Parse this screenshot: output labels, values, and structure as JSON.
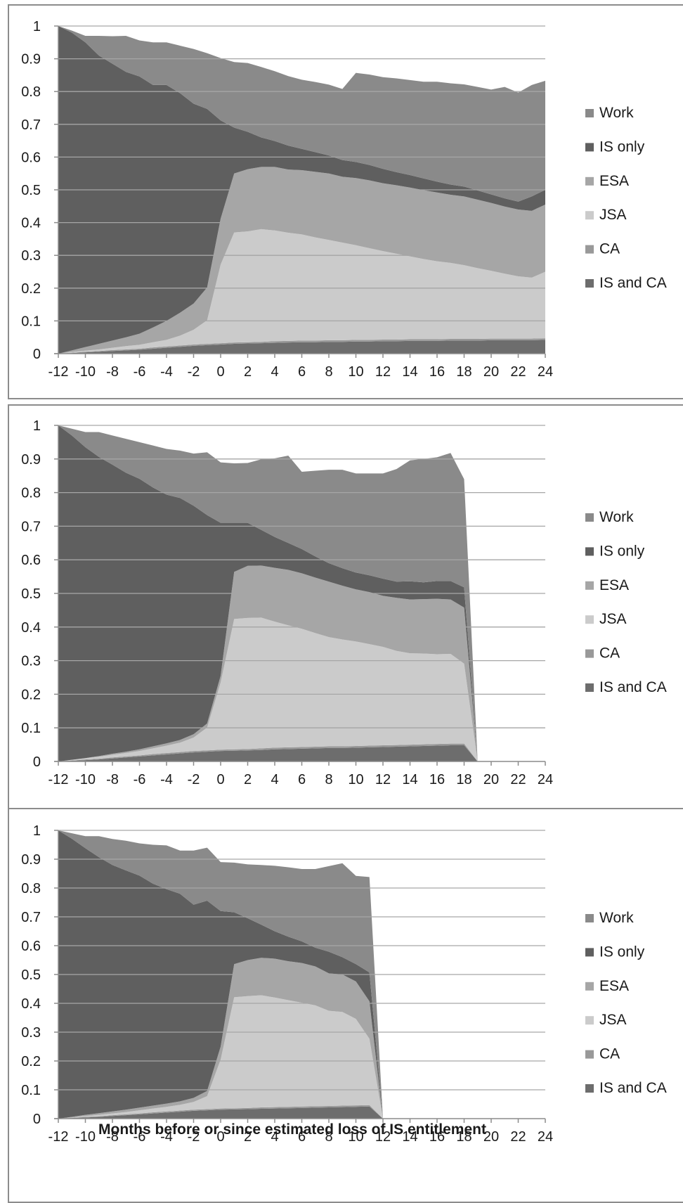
{
  "chart_data": [
    {
      "type": "area",
      "stacked": true,
      "title": "",
      "xlabel": "",
      "ylabel": "",
      "xlim": [
        -12,
        24
      ],
      "ylim": [
        0,
        1
      ],
      "x_ticks": [
        "-12",
        "-10",
        "-8",
        "-6",
        "-4",
        "-2",
        "0",
        "2",
        "4",
        "6",
        "8",
        "10",
        "12",
        "14",
        "16",
        "18",
        "20",
        "22",
        "24"
      ],
      "y_ticks": [
        "0",
        "0.1",
        "0.2",
        "0.3",
        "0.4",
        "0.5",
        "0.6",
        "0.7",
        "0.8",
        "0.9",
        "1"
      ],
      "grid": true,
      "legend": "right",
      "x": [
        -12,
        -11,
        -10,
        -9,
        -8,
        -7,
        -6,
        -5,
        -4,
        -3,
        -2,
        -1,
        0,
        1,
        2,
        3,
        4,
        5,
        6,
        7,
        8,
        9,
        10,
        11,
        12,
        13,
        14,
        15,
        16,
        17,
        18,
        19,
        20,
        21,
        22,
        23,
        24
      ],
      "series": [
        {
          "name": "IS and CA",
          "color": "#6d6d6d",
          "values": [
            0,
            0.002,
            0.004,
            0.006,
            0.008,
            0.01,
            0.012,
            0.015,
            0.018,
            0.021,
            0.024,
            0.026,
            0.028,
            0.03,
            0.031,
            0.032,
            0.033,
            0.034,
            0.035,
            0.035,
            0.036,
            0.036,
            0.037,
            0.037,
            0.038,
            0.038,
            0.039,
            0.039,
            0.039,
            0.04,
            0.04,
            0.04,
            0.041,
            0.041,
            0.041,
            0.041,
            0.042
          ]
        },
        {
          "name": "CA",
          "color": "#999999",
          "values": [
            0,
            0.001,
            0.002,
            0.002,
            0.003,
            0.003,
            0.003,
            0.004,
            0.004,
            0.004,
            0.004,
            0.004,
            0.004,
            0.004,
            0.004,
            0.004,
            0.005,
            0.005,
            0.005,
            0.005,
            0.005,
            0.005,
            0.005,
            0.005,
            0.005,
            0.005,
            0.005,
            0.005,
            0.005,
            0.005,
            0.005,
            0.005,
            0.005,
            0.005,
            0.005,
            0.005,
            0.005
          ]
        },
        {
          "name": "JSA",
          "color": "#cbcbcb",
          "values": [
            0,
            0.002,
            0.003,
            0.005,
            0.007,
            0.01,
            0.012,
            0.016,
            0.02,
            0.03,
            0.045,
            0.072,
            0.24,
            0.336,
            0.338,
            0.344,
            0.338,
            0.33,
            0.324,
            0.315,
            0.306,
            0.298,
            0.289,
            0.28,
            0.27,
            0.262,
            0.253,
            0.245,
            0.238,
            0.232,
            0.225,
            0.216,
            0.207,
            0.198,
            0.19,
            0.186,
            0.203
          ]
        },
        {
          "name": "ESA",
          "color": "#a6a6a6",
          "values": [
            0,
            0.005,
            0.011,
            0.017,
            0.022,
            0.027,
            0.034,
            0.045,
            0.058,
            0.07,
            0.08,
            0.1,
            0.14,
            0.18,
            0.19,
            0.19,
            0.194,
            0.193,
            0.196,
            0.2,
            0.203,
            0.201,
            0.205,
            0.207,
            0.207,
            0.209,
            0.21,
            0.21,
            0.21,
            0.208,
            0.21,
            0.209,
            0.207,
            0.205,
            0.204,
            0.204,
            0.205
          ]
        },
        {
          "name": "IS only",
          "color": "#5f5f5f",
          "values": [
            1,
            0.97,
            0.93,
            0.88,
            0.845,
            0.81,
            0.785,
            0.74,
            0.72,
            0.67,
            0.61,
            0.545,
            0.3,
            0.14,
            0.114,
            0.09,
            0.079,
            0.073,
            0.065,
            0.06,
            0.055,
            0.051,
            0.049,
            0.047,
            0.044,
            0.04,
            0.038,
            0.036,
            0.033,
            0.031,
            0.03,
            0.028,
            0.026,
            0.025,
            0.024,
            0.044,
            0.045
          ]
        },
        {
          "name": "Work",
          "color": "#8a8a8a",
          "values": [
            0,
            0.006,
            0.02,
            0.06,
            0.084,
            0.11,
            0.11,
            0.13,
            0.13,
            0.145,
            0.167,
            0.17,
            0.19,
            0.2,
            0.21,
            0.215,
            0.213,
            0.212,
            0.211,
            0.214,
            0.216,
            0.217,
            0.272,
            0.276,
            0.28,
            0.286,
            0.29,
            0.295,
            0.305,
            0.309,
            0.312,
            0.316,
            0.32,
            0.34,
            0.333,
            0.34,
            0.333
          ]
        }
      ]
    },
    {
      "type": "area",
      "stacked": true,
      "title": "",
      "xlabel": "",
      "ylabel": "",
      "xlim": [
        -12,
        24
      ],
      "ylim": [
        0,
        1
      ],
      "x_ticks": [
        "-12",
        "-10",
        "-8",
        "-6",
        "-4",
        "-2",
        "0",
        "2",
        "4",
        "6",
        "8",
        "10",
        "12",
        "14",
        "16",
        "18",
        "20",
        "22",
        "24"
      ],
      "y_ticks": [
        "0",
        "0.1",
        "0.2",
        "0.3",
        "0.4",
        "0.5",
        "0.6",
        "0.7",
        "0.8",
        "0.9",
        "1"
      ],
      "grid": true,
      "legend": "right",
      "x": [
        -12,
        -11,
        -10,
        -9,
        -8,
        -7,
        -6,
        -5,
        -4,
        -3,
        -2,
        -1,
        0,
        1,
        2,
        3,
        4,
        5,
        6,
        7,
        8,
        9,
        10,
        11,
        12,
        13,
        14,
        15,
        16,
        17,
        18,
        19
      ],
      "series": [
        {
          "name": "IS and CA",
          "color": "#6d6d6d",
          "values": [
            0,
            0.002,
            0.004,
            0.006,
            0.009,
            0.012,
            0.015,
            0.018,
            0.021,
            0.024,
            0.027,
            0.029,
            0.031,
            0.032,
            0.033,
            0.034,
            0.036,
            0.037,
            0.038,
            0.039,
            0.04,
            0.04,
            0.041,
            0.042,
            0.043,
            0.044,
            0.045,
            0.046,
            0.047,
            0.048,
            0.048,
            0
          ]
        },
        {
          "name": "CA",
          "color": "#999999",
          "values": [
            0,
            0.001,
            0.002,
            0.002,
            0.003,
            0.003,
            0.003,
            0.004,
            0.004,
            0.004,
            0.004,
            0.004,
            0.004,
            0.004,
            0.004,
            0.005,
            0.005,
            0.005,
            0.005,
            0.005,
            0.005,
            0.005,
            0.005,
            0.005,
            0.005,
            0.005,
            0.005,
            0.005,
            0.005,
            0.005,
            0.005,
            0
          ]
        },
        {
          "name": "JSA",
          "color": "#cbcbcb",
          "values": [
            0,
            0.002,
            0.004,
            0.006,
            0.008,
            0.01,
            0.013,
            0.017,
            0.022,
            0.028,
            0.04,
            0.068,
            0.2,
            0.388,
            0.39,
            0.389,
            0.375,
            0.363,
            0.352,
            0.338,
            0.325,
            0.318,
            0.311,
            0.302,
            0.293,
            0.28,
            0.272,
            0.27,
            0.267,
            0.267,
            0.238,
            0
          ]
        },
        {
          "name": "ESA",
          "color": "#a6a6a6",
          "values": [
            0,
            0,
            0,
            0.002,
            0.003,
            0.004,
            0.005,
            0.006,
            0.007,
            0.008,
            0.01,
            0.012,
            0.02,
            0.14,
            0.155,
            0.155,
            0.16,
            0.165,
            0.165,
            0.165,
            0.165,
            0.16,
            0.155,
            0.155,
            0.152,
            0.158,
            0.16,
            0.162,
            0.165,
            0.162,
            0.167,
            0
          ]
        },
        {
          "name": "IS only",
          "color": "#5f5f5f",
          "values": [
            1,
            0.965,
            0.925,
            0.89,
            0.86,
            0.83,
            0.805,
            0.77,
            0.74,
            0.72,
            0.68,
            0.62,
            0.455,
            0.146,
            0.128,
            0.106,
            0.092,
            0.08,
            0.072,
            0.063,
            0.055,
            0.052,
            0.05,
            0.05,
            0.051,
            0.048,
            0.054,
            0.05,
            0.053,
            0.055,
            0.06,
            0
          ]
        },
        {
          "name": "Work",
          "color": "#8a8a8a",
          "values": [
            0,
            0.02,
            0.045,
            0.074,
            0.087,
            0.101,
            0.109,
            0.125,
            0.136,
            0.141,
            0.155,
            0.187,
            0.18,
            0.177,
            0.178,
            0.21,
            0.234,
            0.26,
            0.23,
            0.255,
            0.278,
            0.293,
            0.295,
            0.303,
            0.313,
            0.335,
            0.36,
            0.367,
            0.368,
            0.381,
            0.322,
            0
          ]
        }
      ]
    },
    {
      "type": "area",
      "stacked": true,
      "title": "",
      "xlabel": "Months before or since estimated loss of IS entitlement",
      "ylabel": "",
      "xlim": [
        -12,
        24
      ],
      "ylim": [
        0,
        1
      ],
      "x_ticks": [
        "-12",
        "-10",
        "-8",
        "-6",
        "-4",
        "-2",
        "0",
        "2",
        "4",
        "6",
        "8",
        "10",
        "12",
        "14",
        "16",
        "18",
        "20",
        "22",
        "24"
      ],
      "y_ticks": [
        "0",
        "0.1",
        "0.2",
        "0.3",
        "0.4",
        "0.5",
        "0.6",
        "0.7",
        "0.8",
        "0.9",
        "1"
      ],
      "grid": true,
      "legend": "right",
      "x": [
        -12,
        -11,
        -10,
        -9,
        -8,
        -7,
        -6,
        -5,
        -4,
        -3,
        -2,
        -1,
        0,
        1,
        2,
        3,
        4,
        5,
        6,
        7,
        8,
        9,
        10,
        11,
        12
      ],
      "series": [
        {
          "name": "IS and CA",
          "color": "#6d6d6d",
          "values": [
            0,
            0.002,
            0.004,
            0.006,
            0.009,
            0.012,
            0.015,
            0.018,
            0.021,
            0.024,
            0.027,
            0.029,
            0.031,
            0.032,
            0.033,
            0.034,
            0.035,
            0.036,
            0.037,
            0.038,
            0.039,
            0.04,
            0.041,
            0.042,
            0
          ]
        },
        {
          "name": "CA",
          "color": "#999999",
          "values": [
            0,
            0.001,
            0.002,
            0.002,
            0.003,
            0.003,
            0.003,
            0.004,
            0.004,
            0.004,
            0.004,
            0.004,
            0.004,
            0.004,
            0.004,
            0.005,
            0.005,
            0.005,
            0.005,
            0.005,
            0.005,
            0.005,
            0.005,
            0.005,
            0
          ]
        },
        {
          "name": "JSA",
          "color": "#cbcbcb",
          "values": [
            0,
            0.001,
            0.003,
            0.005,
            0.006,
            0.008,
            0.011,
            0.013,
            0.016,
            0.02,
            0.027,
            0.045,
            0.17,
            0.385,
            0.388,
            0.389,
            0.38,
            0.37,
            0.36,
            0.35,
            0.33,
            0.325,
            0.3,
            0.23,
            0
          ]
        },
        {
          "name": "ESA",
          "color": "#a6a6a6",
          "values": [
            0,
            0.002,
            0.004,
            0.006,
            0.007,
            0.008,
            0.009,
            0.01,
            0.011,
            0.012,
            0.014,
            0.018,
            0.045,
            0.115,
            0.125,
            0.13,
            0.135,
            0.135,
            0.138,
            0.135,
            0.13,
            0.13,
            0.13,
            0.13,
            0
          ]
        },
        {
          "name": "IS only",
          "color": "#5f5f5f",
          "values": [
            1,
            0.965,
            0.925,
            0.888,
            0.855,
            0.83,
            0.805,
            0.77,
            0.744,
            0.72,
            0.67,
            0.66,
            0.47,
            0.18,
            0.145,
            0.115,
            0.095,
            0.085,
            0.075,
            0.065,
            0.075,
            0.06,
            0.06,
            0.1,
            0
          ]
        },
        {
          "name": "Work",
          "color": "#8a8a8a",
          "values": [
            0,
            0.019,
            0.042,
            0.073,
            0.09,
            0.103,
            0.112,
            0.135,
            0.152,
            0.15,
            0.188,
            0.184,
            0.17,
            0.172,
            0.187,
            0.207,
            0.227,
            0.241,
            0.251,
            0.273,
            0.297,
            0.326,
            0.306,
            0.331,
            0
          ]
        }
      ]
    }
  ]
}
